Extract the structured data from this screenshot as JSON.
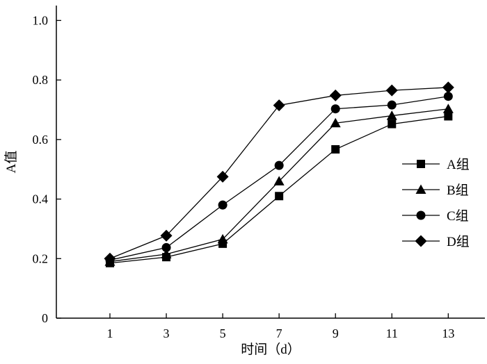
{
  "chart_data": {
    "type": "line",
    "xlabel": "时间（d）",
    "ylabel": "A值",
    "x": [
      1,
      3,
      5,
      7,
      9,
      11,
      13
    ],
    "xticks": [
      "1",
      "3",
      "5",
      "7",
      "9",
      "11",
      "13"
    ],
    "xlim": [
      -0.9,
      14.3
    ],
    "ylim": [
      0,
      1.05
    ],
    "yticks": [
      "0",
      "0.2",
      "0.4",
      "0.6",
      "0.8",
      "1.0"
    ],
    "ytick_values": [
      0,
      0.2,
      0.4,
      0.6,
      0.8,
      1.0
    ],
    "grid": false,
    "legend_position": "right",
    "series": [
      {
        "name": "A组",
        "marker": "square",
        "values": [
          0.185,
          0.205,
          0.25,
          0.41,
          0.567,
          0.652,
          0.678
        ]
      },
      {
        "name": "B组",
        "marker": "triangle",
        "values": [
          0.19,
          0.215,
          0.265,
          0.46,
          0.655,
          0.68,
          0.703
        ]
      },
      {
        "name": "C组",
        "marker": "circle",
        "values": [
          0.195,
          0.237,
          0.38,
          0.513,
          0.703,
          0.716,
          0.745
        ]
      },
      {
        "name": "D组",
        "marker": "diamond",
        "values": [
          0.2,
          0.277,
          0.475,
          0.715,
          0.748,
          0.765,
          0.775
        ]
      }
    ]
  }
}
